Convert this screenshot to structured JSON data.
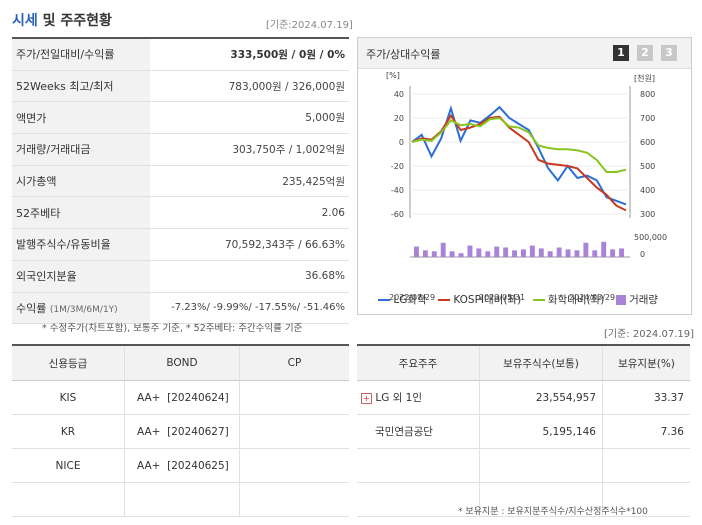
{
  "header": {
    "title_part1": "시세",
    "title_part2": " 및 주주현황",
    "as_of": "[기준:2024.07.19]"
  },
  "price_table": [
    {
      "label": "주가/전일대비/수익률",
      "value": "333,500원 / 0원 / 0%"
    },
    {
      "label": "52Weeks 최고/최저",
      "value": "783,000원 / 326,000원"
    },
    {
      "label": "액면가",
      "value": "5,000원"
    },
    {
      "label": "거래량/거래대금",
      "value": "303,750주 / 1,002억원"
    },
    {
      "label": "시가총액",
      "value": "235,425억원"
    },
    {
      "label": "52주베타",
      "value": "2.06"
    },
    {
      "label": "발행주식수/유동비율",
      "value": "70,592,343주 / 66.63%"
    },
    {
      "label": "외국인지분율",
      "value": "36.68%"
    }
  ],
  "return_row": {
    "label": "수익률",
    "period": "(1M/3M/6M/1Y)",
    "value": "-7.23%/ -9.99%/ -17.55%/ -51.46%"
  },
  "footnote_left": "* 수정주가(차트포함), 보통주 기준, * 52주베타: 주간수익률 기준",
  "as_of_right": "[기준: 2024.07.19]",
  "chart_panel": {
    "title": "주가/상대수익률",
    "pages": [
      "1",
      "2",
      "3"
    ]
  },
  "chart_data": {
    "type": "line",
    "left_unit": "[%]",
    "right_unit": "[천원]",
    "left_ticks": [
      "40",
      "20",
      "0",
      "-20",
      "-40",
      "-60"
    ],
    "right_ticks": [
      "800",
      "700",
      "600",
      "500",
      "400",
      "300"
    ],
    "volume_ticks": [
      "500,000",
      "0"
    ],
    "x_labels": [
      "2022/07/29",
      "2023/05/31",
      "2024/03/29"
    ],
    "ylim_left": [
      -60,
      40
    ],
    "series": [
      {
        "name": "LG화학",
        "color": "#2b6fd6",
        "values": [
          0,
          6,
          -12,
          3,
          28,
          1,
          18,
          16,
          22,
          29,
          20,
          15,
          10,
          -5,
          -22,
          -32,
          -20,
          -30,
          -28,
          -32,
          -46,
          -49,
          -52
        ]
      },
      {
        "name": "KOSPI대비(좌)",
        "color": "#c8391e",
        "values": [
          0,
          3,
          2,
          9,
          22,
          10,
          12,
          15,
          20,
          21,
          12,
          6,
          0,
          -15,
          -18,
          -19,
          -20,
          -22,
          -30,
          -38,
          -44,
          -53,
          -57
        ]
      },
      {
        "name": "화학대비(좌)",
        "color": "#88c521",
        "values": [
          0,
          2,
          1,
          8,
          18,
          14,
          15,
          13,
          19,
          20,
          13,
          12,
          8,
          -3,
          -5,
          -6,
          -6,
          -7,
          -9,
          -15,
          -25,
          -25,
          -23
        ]
      }
    ],
    "volume": {
      "name": "거래량",
      "color": "#a883d8",
      "values": [
        0.55,
        0.35,
        0.3,
        0.75,
        0.3,
        0.2,
        0.6,
        0.45,
        0.3,
        0.55,
        0.5,
        0.35,
        0.4,
        0.6,
        0.45,
        0.3,
        0.5,
        0.4,
        0.35,
        0.75,
        0.35,
        0.8,
        0.4,
        0.45
      ]
    }
  },
  "credit": {
    "headers": [
      "신용등급",
      "BOND",
      "CP"
    ],
    "rows": [
      {
        "agency": "KIS",
        "bond": "AA+  [20240624]",
        "cp": ""
      },
      {
        "agency": "KR",
        "bond": "AA+  [20240627]",
        "cp": ""
      },
      {
        "agency": "NICE",
        "bond": "AA+  [20240625]",
        "cp": ""
      }
    ]
  },
  "holders": {
    "headers": [
      "주요주주",
      "보유주식수(보통)",
      "보유지분(%)"
    ],
    "rows": [
      {
        "name": "LG 외 1인",
        "shares": "23,554,957",
        "pct": "33.37"
      },
      {
        "name": "국민연금공단",
        "shares": "5,195,146",
        "pct": "7.36"
      }
    ]
  },
  "footnote_right": "* 보유지분 : 보유지분주식수/지수산정주식수*100"
}
